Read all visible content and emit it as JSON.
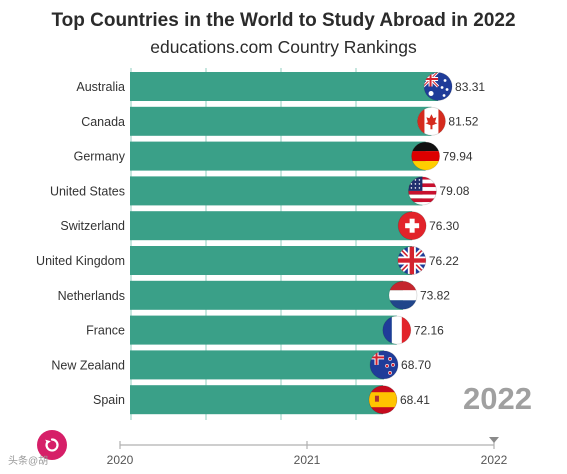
{
  "title": "Top Countries in the World to Study Abroad in 2022",
  "subtitle": "educations.com Country Rankings",
  "current_year": "2022",
  "watermark": "头条@胡",
  "icons": {
    "replay": "replay-icon"
  },
  "colors": {
    "bar": "#3aa088",
    "accent": "#d61f68",
    "grid": "#8fcfbf",
    "axis": "#b0b0b0"
  },
  "chart_data": {
    "type": "bar",
    "orientation": "horizontal",
    "title": "Top Countries in the World to Study Abroad in 2022",
    "subtitle": "educations.com Country Rankings",
    "categories": [
      "Australia",
      "Canada",
      "Germany",
      "United States",
      "Switzerland",
      "United Kingdom",
      "Netherlands",
      "France",
      "New Zealand",
      "Spain"
    ],
    "values": [
      83.31,
      81.52,
      79.94,
      79.08,
      76.3,
      76.22,
      73.82,
      72.16,
      68.7,
      68.41
    ],
    "value_labels": [
      "83.31",
      "81.52",
      "79.94",
      "79.08",
      "76.30",
      "76.22",
      "73.82",
      "72.16",
      "68.70",
      "68.41"
    ],
    "flags": [
      "australia-flag",
      "canada-flag",
      "germany-flag",
      "usa-flag",
      "switzerland-flag",
      "uk-flag",
      "netherlands-flag",
      "france-flag",
      "new-zealand-flag",
      "spain-flag"
    ],
    "xlim": [
      0,
      86
    ],
    "timeline": {
      "ticks": [
        "2020",
        "2021",
        "2022"
      ],
      "current": "2022"
    },
    "grid": true,
    "legend": "none"
  }
}
